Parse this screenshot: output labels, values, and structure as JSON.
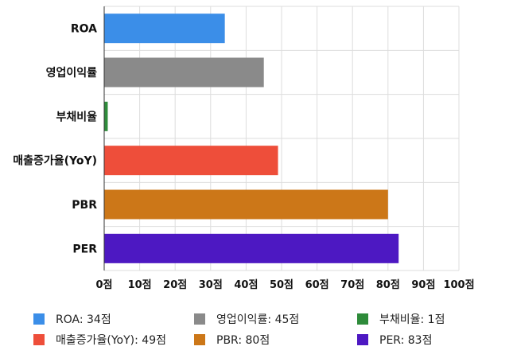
{
  "chart_data": {
    "type": "bar",
    "orientation": "horizontal",
    "categories": [
      "ROA",
      "영업이익률",
      "부채비율",
      "매출증가율(YoY)",
      "PBR",
      "PER"
    ],
    "values": [
      34,
      45,
      1,
      49,
      80,
      83
    ],
    "colors": [
      "#3b8ee8",
      "#8a8a8a",
      "#2e8b3a",
      "#ee4e3a",
      "#cc7718",
      "#4d18c2"
    ],
    "xlim": [
      0,
      100
    ],
    "x_ticks": [
      0,
      10,
      20,
      30,
      40,
      50,
      60,
      70,
      80,
      90,
      100
    ],
    "tick_suffix": "점",
    "grid": true,
    "legend_position": "bottom",
    "legend": [
      {
        "label": "ROA: 34점",
        "color": "#3b8ee8"
      },
      {
        "label": "영업이익률: 45점",
        "color": "#8a8a8a"
      },
      {
        "label": "부채비율: 1점",
        "color": "#2e8b3a"
      },
      {
        "label": "매출증가율(YoY): 49점",
        "color": "#ee4e3a"
      },
      {
        "label": "PBR: 80점",
        "color": "#cc7718"
      },
      {
        "label": "PER: 83점",
        "color": "#4d18c2"
      }
    ],
    "title": "",
    "xlabel": "",
    "ylabel": ""
  }
}
